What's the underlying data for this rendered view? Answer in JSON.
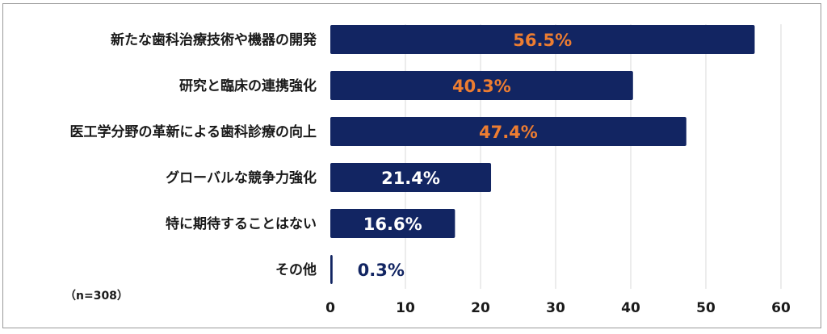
{
  "chart_data": {
    "type": "bar",
    "orientation": "horizontal",
    "categories": [
      "新たな歯科治療技術や機器の開発",
      "研究と臨床の連携強化",
      "医工学分野の革新による歯科診療の向上",
      "グローバルな競争力強化",
      "特に期待することはない",
      "その他"
    ],
    "values": [
      56.5,
      40.3,
      47.4,
      21.4,
      16.6,
      0.3
    ],
    "value_labels": [
      "56.5%",
      "40.3%",
      "47.4%",
      "21.4%",
      "16.6%",
      "0.3%"
    ],
    "xlim": [
      0,
      60
    ],
    "x_ticks": [
      0,
      10,
      20,
      30,
      40,
      50,
      60
    ],
    "grid": true,
    "note": "（n=308）",
    "colors": {
      "bar": "#122562",
      "highlight_label": "#ed7d31",
      "inside_label": "#ffffff",
      "outside_label": "#122562",
      "grid": "#d9d9d9"
    }
  }
}
